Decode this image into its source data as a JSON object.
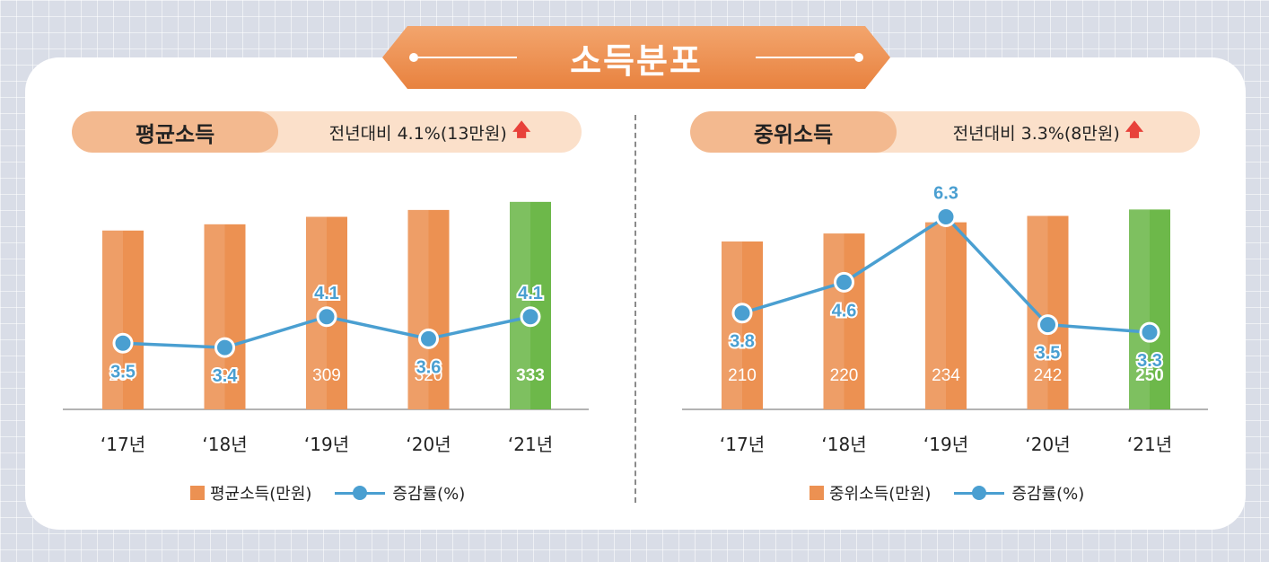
{
  "banner": {
    "title": "소득분포"
  },
  "panels": [
    {
      "label": "평균소득",
      "summary": "전년대비 4.1%(13만원)",
      "legend_bar": "평균소득(만원)",
      "legend_line": "증감률(%)"
    },
    {
      "label": "중위소득",
      "summary": "전년대비 3.3%(8만원)",
      "legend_bar": "중위소득(만원)",
      "legend_line": "증감률(%)"
    }
  ],
  "colors": {
    "bar": "#ec9152",
    "bar_highlight": "#6db84a",
    "line": "#4a9fd1",
    "rate_label": "#4a9fd1"
  },
  "chart_data": [
    {
      "type": "bar",
      "title": "평균소득",
      "categories": [
        "‘17년",
        "‘18년",
        "‘19년",
        "‘20년",
        "‘21년"
      ],
      "series": [
        {
          "name": "평균소득(만원)",
          "values": [
            287,
            297,
            309,
            320,
            333
          ]
        },
        {
          "name": "증감률(%)",
          "type": "line",
          "values": [
            3.5,
            3.4,
            4.1,
            3.6,
            4.1
          ]
        }
      ],
      "highlight_index": 4,
      "ylim": [
        0,
        340
      ],
      "rate_ylim": [
        2.0,
        6.8
      ]
    },
    {
      "type": "bar",
      "title": "중위소득",
      "categories": [
        "‘17년",
        "‘18년",
        "‘19년",
        "‘20년",
        "‘21년"
      ],
      "series": [
        {
          "name": "중위소득(만원)",
          "values": [
            210,
            220,
            234,
            242,
            250
          ]
        },
        {
          "name": "증감률(%)",
          "type": "line",
          "values": [
            3.8,
            4.6,
            6.3,
            3.5,
            3.3
          ]
        }
      ],
      "highlight_index": 4,
      "ylim": [
        0,
        265
      ],
      "rate_ylim": [
        1.3,
        6.8
      ]
    }
  ]
}
